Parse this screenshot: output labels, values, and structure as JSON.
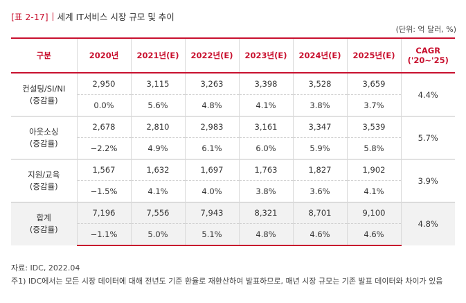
{
  "title": {
    "tag": "[표 2-17]",
    "text": "세계 IT서비스 시장 규모 및 추이"
  },
  "unit_note": "(단위: 억 달러, %)",
  "table": {
    "headers": [
      "구분",
      "2020년",
      "2021년(E)",
      "2022년(E)",
      "2023년(E)",
      "2024년(E)",
      "2025년(E)",
      "CAGR",
      "('20~'25)"
    ],
    "rows": [
      {
        "label": "컨설팅/SI/NI",
        "sublabel": "(증감률)",
        "values": [
          "2,950",
          "3,115",
          "3,263",
          "3,398",
          "3,528",
          "3,659"
        ],
        "growth": [
          "0.0%",
          "5.6%",
          "4.8%",
          "4.1%",
          "3.8%",
          "3.7%"
        ],
        "cagr": "4.4%"
      },
      {
        "label": "아웃소싱",
        "sublabel": "(증감률)",
        "values": [
          "2,678",
          "2,810",
          "2,983",
          "3,161",
          "3,347",
          "3,539"
        ],
        "growth": [
          "−2.2%",
          "4.9%",
          "6.1%",
          "6.0%",
          "5.9%",
          "5.8%"
        ],
        "cagr": "5.7%"
      },
      {
        "label": "지원/교육",
        "sublabel": "(증감률)",
        "values": [
          "1,567",
          "1,632",
          "1,697",
          "1,763",
          "1,827",
          "1,902"
        ],
        "growth": [
          "−1.5%",
          "4.1%",
          "4.0%",
          "3.8%",
          "3.6%",
          "4.1%"
        ],
        "cagr": "3.9%"
      },
      {
        "label": "합계",
        "sublabel": "(증감률)",
        "values": [
          "7,196",
          "7,556",
          "7,943",
          "8,321",
          "8,701",
          "9,100"
        ],
        "growth": [
          "−1.1%",
          "5.0%",
          "5.1%",
          "4.8%",
          "4.6%",
          "4.6%"
        ],
        "cagr": "4.8%"
      }
    ]
  },
  "notes": {
    "source": "자료: IDC, 2022.04",
    "note1": "주1) IDC에서는 모든 시장 데이터에 대해 전년도 기준 환율로 재환산하여 발표하므로, 매년 시장 규모는 기존 발표 데이터와 차이가 있음"
  },
  "colors": {
    "accent": "#c8102e",
    "total_row_bg": "#f2f2f2"
  }
}
